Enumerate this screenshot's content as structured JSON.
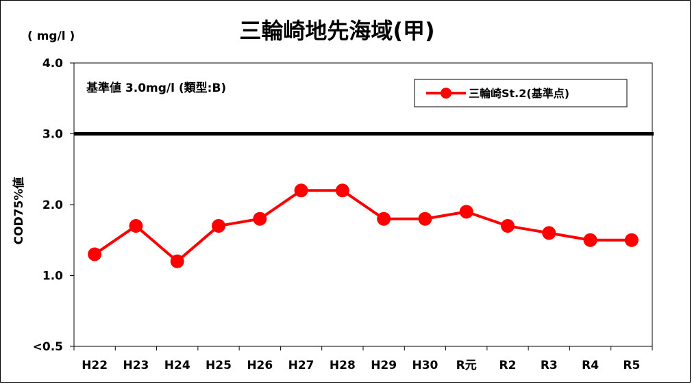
{
  "chart_data": {
    "type": "line",
    "title": "三輪崎地先海域(甲)",
    "unit_label": "( mg/l )",
    "ylabel": "COD75%値",
    "ylim": [
      0.5,
      4.0
    ],
    "y_ticks": [
      0.5,
      1.0,
      2.0,
      3.0,
      4.0
    ],
    "y_tick_labels": [
      "<0.5",
      "1.0",
      "2.0",
      "3.0",
      "4.0"
    ],
    "categories": [
      "H22",
      "H23",
      "H24",
      "H25",
      "H26",
      "H27",
      "H28",
      "H29",
      "H30",
      "R元",
      "R2",
      "R3",
      "R4",
      "R5"
    ],
    "series": [
      {
        "name": "三輪崎St.2(基準点)",
        "color": "#ff0000",
        "values": [
          1.3,
          1.7,
          1.2,
          1.7,
          1.8,
          2.2,
          2.2,
          1.8,
          1.8,
          1.9,
          1.7,
          1.6,
          1.5,
          1.5
        ]
      }
    ],
    "reference_line": {
      "value": 3.0,
      "label": "基準値 3.0mg/l (類型:B)",
      "color": "#000000"
    },
    "legend": {
      "placement": "top-right"
    },
    "grid": false
  }
}
